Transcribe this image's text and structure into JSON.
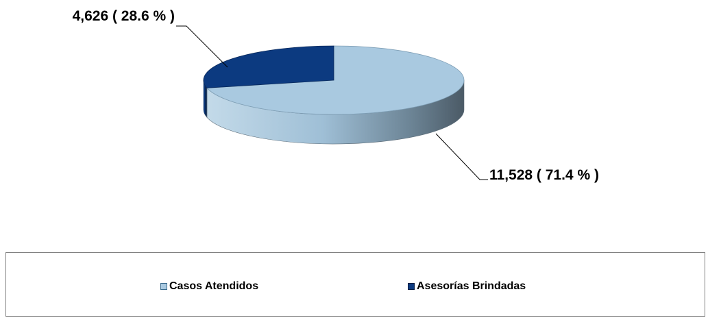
{
  "chart_data": {
    "type": "pie",
    "title": "",
    "slices": [
      {
        "name": "Casos Atendidos",
        "value": 11528,
        "percent": 71.4,
        "label": "11,528 ( 71.4 % )",
        "color": "#a9c9e0"
      },
      {
        "name": "Asesorías Brindadas",
        "value": 4626,
        "percent": 28.6,
        "label": "4,626 ( 28.6 % )",
        "color": "#0c3a80"
      }
    ],
    "three_d": true,
    "legend_position": "bottom"
  },
  "legend": {
    "items": [
      {
        "label": "Casos Atendidos",
        "color": "#a9c9e0"
      },
      {
        "label": "Asesorías Brindadas",
        "color": "#0c3a80"
      }
    ]
  }
}
